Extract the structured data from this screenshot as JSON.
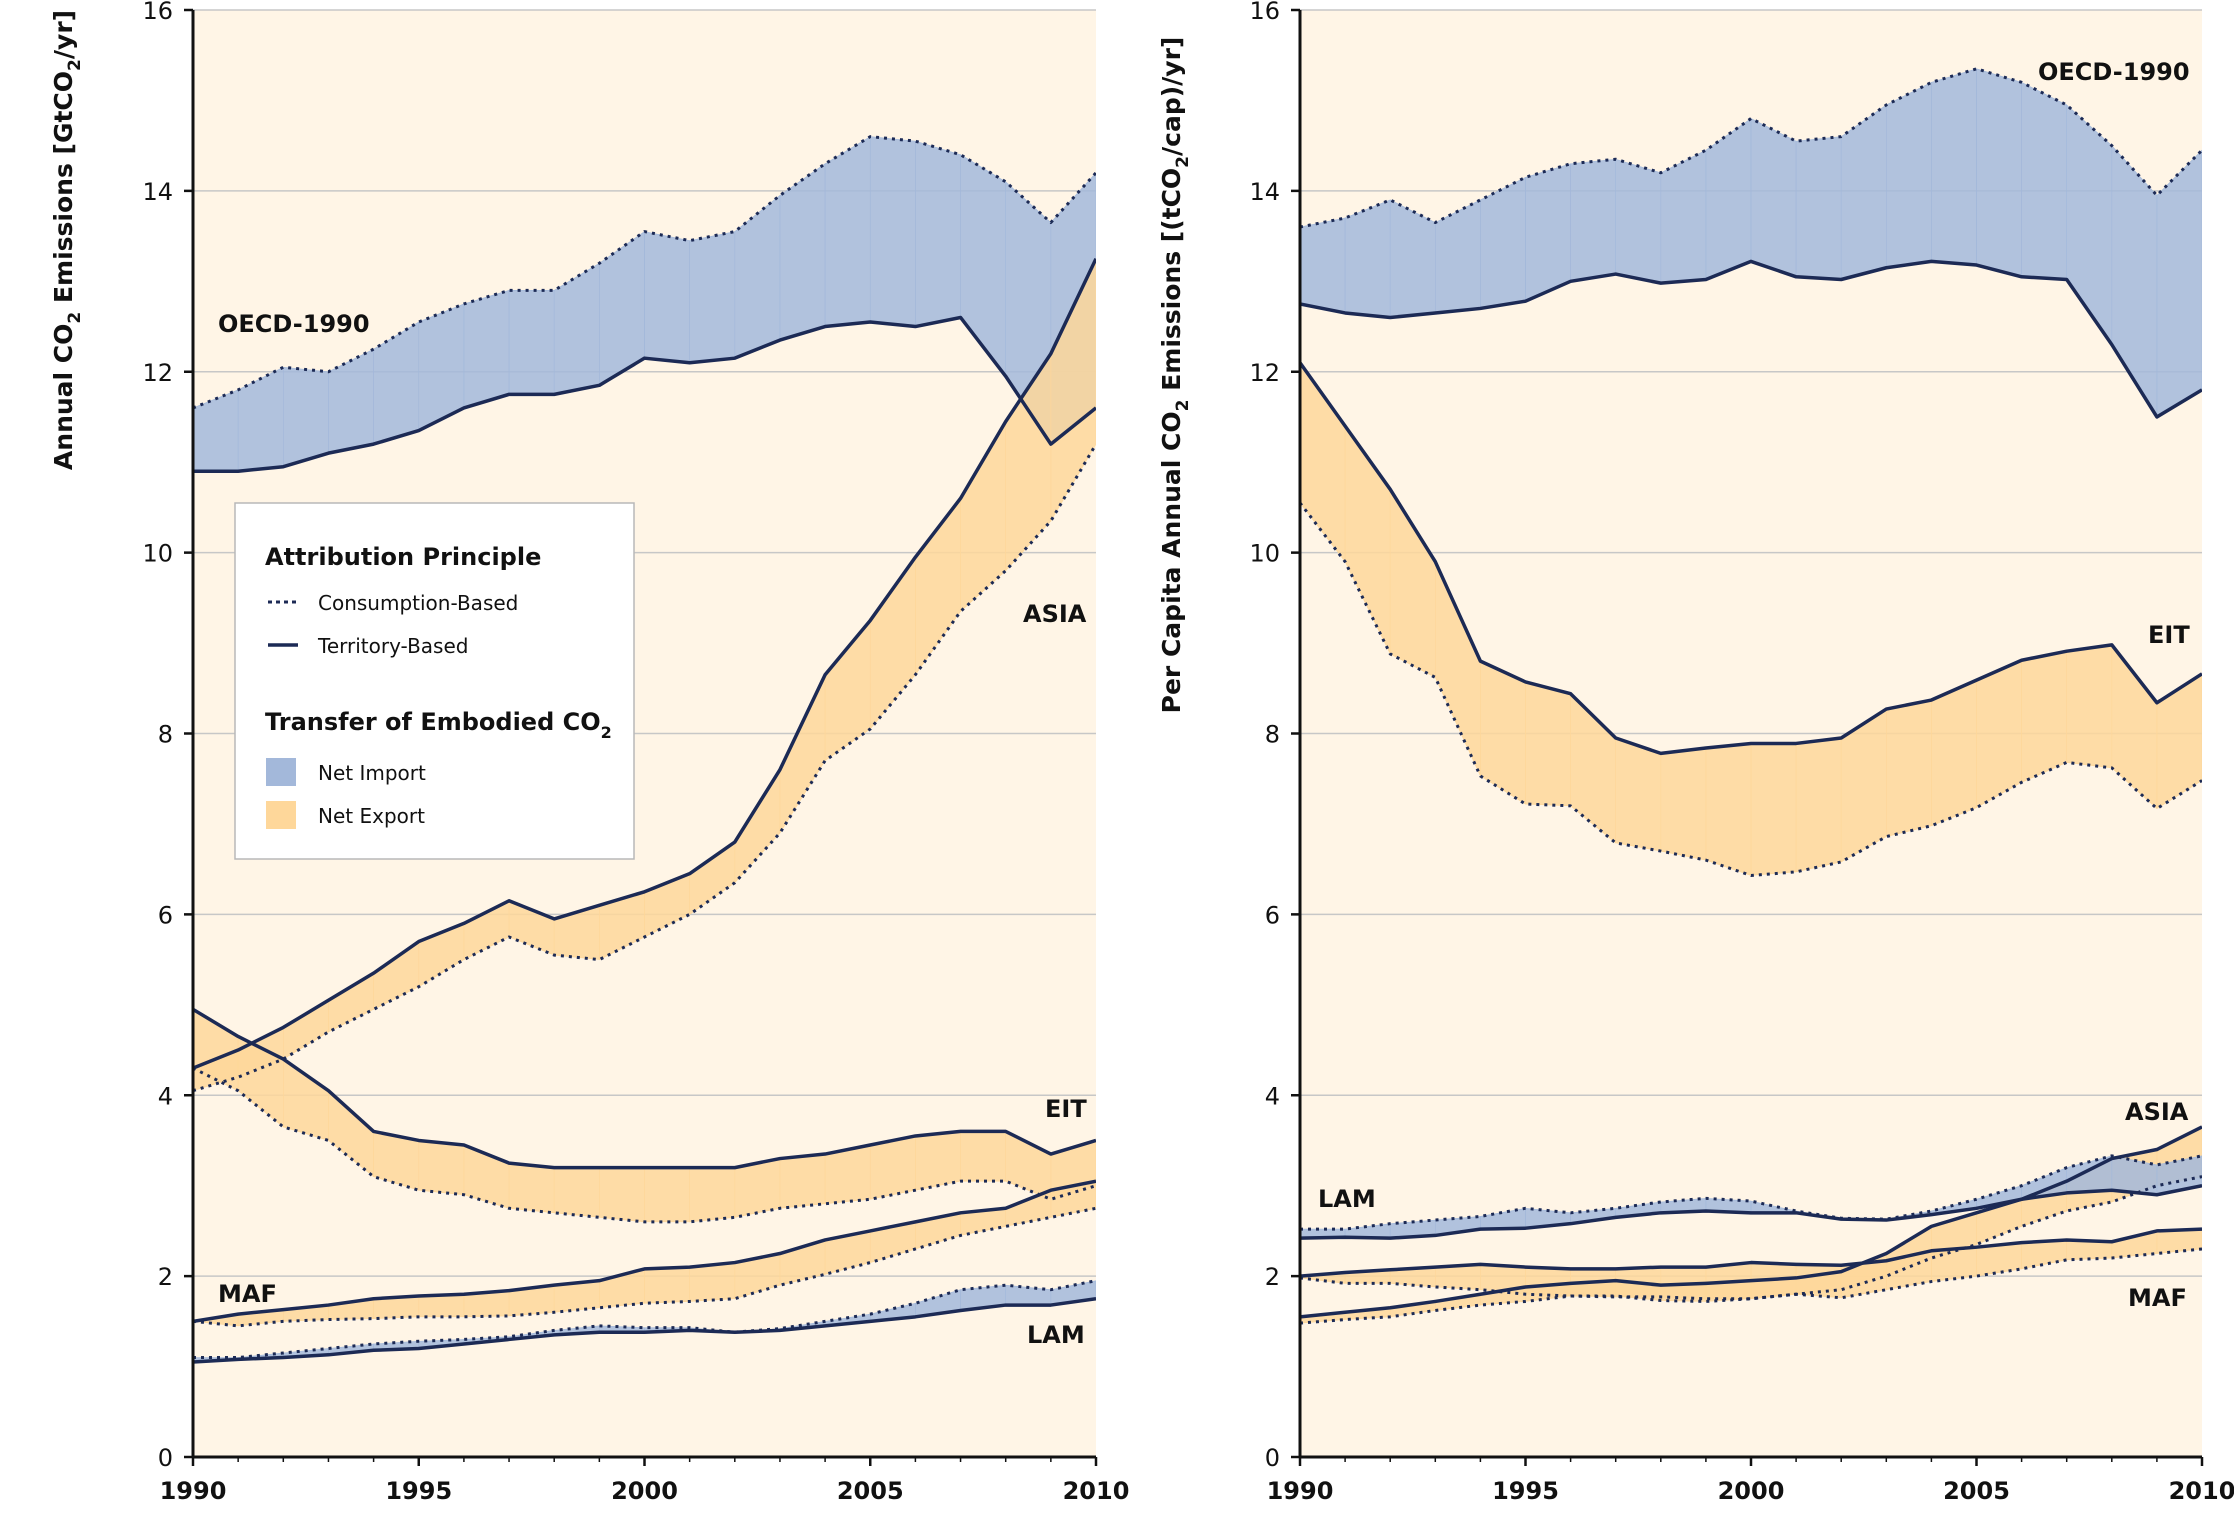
{
  "colors": {
    "plot_bg": "#fff5e6",
    "net_import": "#a3b8da",
    "net_export": "#fed79a",
    "overlap": "#c8ab93",
    "line": "#1c2a55",
    "grid": "#c7c7c7"
  },
  "legend": {
    "attribution_title": "Attribution Principle",
    "consumption": "Consumption-Based",
    "territory": "Territory-Based",
    "transfer_title_main": "Transfer of Embodied CO",
    "transfer_title_sub": "2",
    "net_import": "Net Import",
    "net_export": "Net Export"
  },
  "chart_data": [
    {
      "type": "area",
      "ylabel": {
        "pre": "Annual CO",
        "sub1": "2",
        "mid": " Emissions [GtCO",
        "sub2": "2",
        "post": "/yr]"
      },
      "xlim": [
        1990,
        2010
      ],
      "ylim": [
        0,
        16
      ],
      "x_ticks": [
        1990,
        1995,
        2000,
        2005,
        2010
      ],
      "y_ticks": [
        0,
        2,
        4,
        6,
        8,
        10,
        12,
        14,
        16
      ],
      "x": [
        1990,
        1991,
        1992,
        1993,
        1994,
        1995,
        1996,
        1997,
        1998,
        1999,
        2000,
        2001,
        2002,
        2003,
        2004,
        2005,
        2006,
        2007,
        2008,
        2009,
        2010
      ],
      "series": [
        {
          "name": "OECD-1990",
          "territory": [
            10.9,
            10.9,
            10.95,
            11.1,
            11.2,
            11.35,
            11.6,
            11.75,
            11.75,
            11.85,
            12.15,
            12.1,
            12.15,
            12.35,
            12.5,
            12.55,
            12.5,
            12.6,
            11.95,
            11.2,
            11.6
          ],
          "consumption": [
            11.6,
            11.8,
            12.05,
            12.0,
            12.25,
            12.55,
            12.75,
            12.9,
            12.9,
            13.2,
            13.55,
            13.45,
            13.55,
            13.95,
            14.3,
            14.6,
            14.55,
            14.4,
            14.1,
            13.65,
            14.2
          ]
        },
        {
          "name": "ASIA",
          "territory": [
            4.3,
            4.5,
            4.75,
            5.05,
            5.35,
            5.7,
            5.9,
            6.15,
            5.95,
            6.1,
            6.25,
            6.45,
            6.8,
            7.6,
            8.65,
            9.25,
            9.95,
            10.6,
            11.45,
            12.2,
            13.25
          ],
          "consumption": [
            4.05,
            4.2,
            4.4,
            4.7,
            4.95,
            5.2,
            5.5,
            5.75,
            5.55,
            5.5,
            5.75,
            6.0,
            6.35,
            6.9,
            7.7,
            8.05,
            8.65,
            9.35,
            9.8,
            10.35,
            11.2
          ]
        },
        {
          "name": "EIT",
          "territory": [
            4.95,
            4.65,
            4.4,
            4.05,
            3.6,
            3.5,
            3.45,
            3.25,
            3.2,
            3.2,
            3.2,
            3.2,
            3.2,
            3.3,
            3.35,
            3.45,
            3.55,
            3.6,
            3.6,
            3.35,
            3.5
          ],
          "consumption": [
            4.3,
            4.05,
            3.65,
            3.5,
            3.1,
            2.95,
            2.9,
            2.75,
            2.7,
            2.65,
            2.6,
            2.6,
            2.65,
            2.75,
            2.8,
            2.85,
            2.95,
            3.05,
            3.05,
            2.85,
            3.0
          ]
        },
        {
          "name": "MAF",
          "territory": [
            1.5,
            1.58,
            1.63,
            1.68,
            1.75,
            1.78,
            1.8,
            1.84,
            1.9,
            1.95,
            2.08,
            2.1,
            2.15,
            2.25,
            2.4,
            2.5,
            2.6,
            2.7,
            2.75,
            2.95,
            3.05
          ],
          "consumption": [
            1.5,
            1.45,
            1.5,
            1.52,
            1.53,
            1.55,
            1.55,
            1.56,
            1.6,
            1.65,
            1.7,
            1.72,
            1.75,
            1.9,
            2.02,
            2.15,
            2.3,
            2.45,
            2.55,
            2.65,
            2.75
          ]
        },
        {
          "name": "LAM",
          "territory": [
            1.05,
            1.08,
            1.1,
            1.13,
            1.18,
            1.2,
            1.25,
            1.3,
            1.35,
            1.38,
            1.38,
            1.4,
            1.38,
            1.4,
            1.45,
            1.5,
            1.55,
            1.62,
            1.68,
            1.68,
            1.75
          ],
          "consumption": [
            1.1,
            1.1,
            1.15,
            1.2,
            1.25,
            1.28,
            1.3,
            1.33,
            1.4,
            1.45,
            1.43,
            1.43,
            1.38,
            1.42,
            1.5,
            1.58,
            1.7,
            1.85,
            1.9,
            1.85,
            1.95
          ]
        }
      ]
    },
    {
      "type": "area",
      "ylabel": {
        "pre": "Per Capita Annual CO",
        "sub1": "2",
        "mid": " Emissions [(tCO",
        "sub2": "2",
        "post": "/cap)/yr]"
      },
      "xlim": [
        1990,
        2010
      ],
      "ylim": [
        0,
        16
      ],
      "x_ticks": [
        1990,
        1995,
        2000,
        2005,
        2010
      ],
      "y_ticks": [
        0,
        2,
        4,
        6,
        8,
        10,
        12,
        14,
        16
      ],
      "x": [
        1990,
        1991,
        1992,
        1993,
        1994,
        1995,
        1996,
        1997,
        1998,
        1999,
        2000,
        2001,
        2002,
        2003,
        2004,
        2005,
        2006,
        2007,
        2008,
        2009,
        2010
      ],
      "series": [
        {
          "name": "OECD-1990",
          "territory": [
            12.75,
            12.65,
            12.6,
            12.65,
            12.7,
            12.78,
            13.0,
            13.08,
            12.98,
            13.02,
            13.22,
            13.05,
            13.02,
            13.15,
            13.22,
            13.18,
            13.05,
            13.02,
            12.3,
            11.5,
            11.8
          ],
          "consumption": [
            13.6,
            13.7,
            13.9,
            13.65,
            13.9,
            14.15,
            14.3,
            14.35,
            14.2,
            14.45,
            14.8,
            14.55,
            14.6,
            14.95,
            15.2,
            15.35,
            15.2,
            14.95,
            14.5,
            13.95,
            14.45
          ]
        },
        {
          "name": "EIT",
          "territory": [
            12.1,
            11.4,
            10.7,
            9.9,
            8.8,
            8.57,
            8.44,
            7.95,
            7.78,
            7.84,
            7.89,
            7.89,
            7.95,
            8.27,
            8.37,
            8.59,
            8.81,
            8.91,
            8.98,
            8.34,
            8.66
          ],
          "consumption": [
            10.55,
            9.9,
            8.88,
            8.62,
            7.53,
            7.22,
            7.2,
            6.79,
            6.7,
            6.6,
            6.43,
            6.47,
            6.58,
            6.86,
            6.98,
            7.18,
            7.46,
            7.68,
            7.62,
            7.17,
            7.48
          ]
        },
        {
          "name": "ASIA",
          "territory": [
            1.55,
            1.6,
            1.65,
            1.72,
            1.8,
            1.88,
            1.92,
            1.95,
            1.9,
            1.92,
            1.95,
            1.98,
            2.05,
            2.25,
            2.55,
            2.7,
            2.85,
            3.05,
            3.3,
            3.4,
            3.65
          ],
          "consumption": [
            1.48,
            1.52,
            1.55,
            1.62,
            1.68,
            1.72,
            1.78,
            1.78,
            1.73,
            1.72,
            1.75,
            1.8,
            1.85,
            2.0,
            2.2,
            2.35,
            2.55,
            2.72,
            2.82,
            3.0,
            3.1
          ]
        },
        {
          "name": "LAM",
          "territory": [
            2.42,
            2.43,
            2.42,
            2.45,
            2.52,
            2.53,
            2.58,
            2.65,
            2.7,
            2.72,
            2.7,
            2.7,
            2.63,
            2.62,
            2.68,
            2.75,
            2.85,
            2.92,
            2.95,
            2.9,
            3.0
          ],
          "consumption": [
            2.52,
            2.52,
            2.58,
            2.62,
            2.66,
            2.75,
            2.7,
            2.75,
            2.82,
            2.86,
            2.83,
            2.72,
            2.64,
            2.63,
            2.72,
            2.85,
            3.0,
            3.2,
            3.33,
            3.23,
            3.33
          ]
        },
        {
          "name": "MAF",
          "territory": [
            2.0,
            2.04,
            2.07,
            2.1,
            2.13,
            2.1,
            2.08,
            2.08,
            2.1,
            2.1,
            2.15,
            2.13,
            2.12,
            2.17,
            2.28,
            2.32,
            2.37,
            2.4,
            2.38,
            2.5,
            2.52
          ],
          "consumption": [
            1.98,
            1.92,
            1.92,
            1.88,
            1.85,
            1.8,
            1.78,
            1.77,
            1.77,
            1.75,
            1.75,
            1.8,
            1.76,
            1.85,
            1.94,
            2.0,
            2.08,
            2.18,
            2.2,
            2.25,
            2.3
          ]
        }
      ]
    }
  ],
  "labels": [
    [
      "OECD-1990",
      "ASIA",
      "EIT",
      "MAF",
      "LAM"
    ],
    [
      "OECD-1990",
      "EIT",
      "ASIA",
      "LAM",
      "MAF"
    ]
  ]
}
